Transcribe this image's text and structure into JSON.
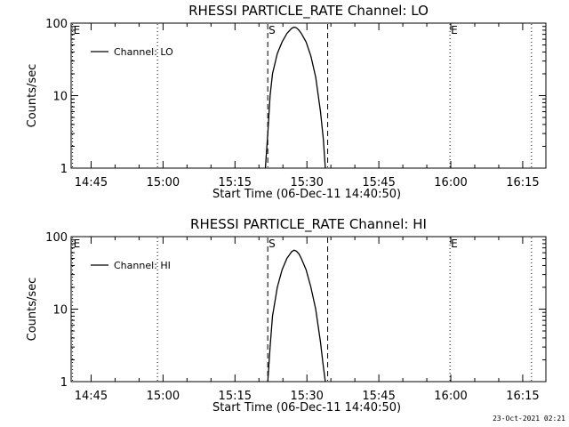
{
  "footer": {
    "timestamp": "23-Oct-2021 02:21"
  },
  "chart_data": [
    {
      "type": "line",
      "title": "RHESSI PARTICLE_RATE Channel: LO",
      "xlabel": "Start Time (06-Dec-11 14:40:50)",
      "ylabel": "Counts/sec",
      "x_unit": "minutes after 14:40:50",
      "xlim": [
        0,
        99
      ],
      "ylim": [
        1,
        100
      ],
      "y_scale": "log",
      "x_tick_labels": [
        "14:45",
        "15:00",
        "15:15",
        "15:30",
        "15:45",
        "16:00",
        "16:15"
      ],
      "y_tick_labels": [
        "1",
        "10",
        "100"
      ],
      "legend": {
        "label": "Channel: LO",
        "position": "top-left"
      },
      "series": [
        {
          "name": "Channel: LO",
          "x": [
            40.5,
            41.0,
            41.5,
            42.0,
            43.0,
            44.0,
            45.0,
            46.0,
            46.5,
            47.0,
            47.5,
            48.0,
            49.0,
            50.0,
            51.0,
            52.0,
            52.6,
            53.0
          ],
          "y": [
            1,
            3,
            10,
            20,
            38,
            55,
            72,
            85,
            88,
            86,
            80,
            72,
            55,
            35,
            18,
            6,
            2.5,
            1
          ]
        }
      ],
      "markers": [
        {
          "label": "E",
          "x": 0.3,
          "style": "dotted"
        },
        {
          "label": "",
          "x": 18.0,
          "style": "dotted"
        },
        {
          "label": "S",
          "x": 41.0,
          "style": "dashed"
        },
        {
          "label": "",
          "x": 53.5,
          "style": "dashed"
        },
        {
          "label": "E",
          "x": 79.0,
          "style": "dotted"
        },
        {
          "label": "",
          "x": 96.0,
          "style": "dotted"
        }
      ]
    },
    {
      "type": "line",
      "title": "RHESSI PARTICLE_RATE Channel: HI",
      "xlabel": "Start Time (06-Dec-11 14:40:50)",
      "ylabel": "Counts/sec",
      "x_unit": "minutes after 14:40:50",
      "xlim": [
        0,
        99
      ],
      "ylim": [
        1,
        100
      ],
      "y_scale": "log",
      "x_tick_labels": [
        "14:45",
        "15:00",
        "15:15",
        "15:30",
        "15:45",
        "16:00",
        "16:15"
      ],
      "y_tick_labels": [
        "1",
        "10",
        "100"
      ],
      "legend": {
        "label": "Channel: HI",
        "position": "top-left"
      },
      "series": [
        {
          "name": "Channel: HI",
          "x": [
            41.0,
            41.5,
            42.0,
            43.0,
            44.0,
            45.0,
            46.0,
            46.5,
            47.0,
            47.5,
            48.0,
            49.0,
            50.0,
            51.0,
            52.0,
            52.5,
            53.0
          ],
          "y": [
            1,
            3,
            8,
            20,
            35,
            50,
            62,
            65,
            63,
            58,
            50,
            35,
            20,
            10,
            3.5,
            1.8,
            1
          ]
        }
      ],
      "markers": [
        {
          "label": "E",
          "x": 0.3,
          "style": "dotted"
        },
        {
          "label": "",
          "x": 18.0,
          "style": "dotted"
        },
        {
          "label": "S",
          "x": 41.0,
          "style": "dashed"
        },
        {
          "label": "",
          "x": 53.5,
          "style": "dashed"
        },
        {
          "label": "E",
          "x": 79.0,
          "style": "dotted"
        },
        {
          "label": "",
          "x": 96.0,
          "style": "dotted"
        }
      ]
    }
  ]
}
